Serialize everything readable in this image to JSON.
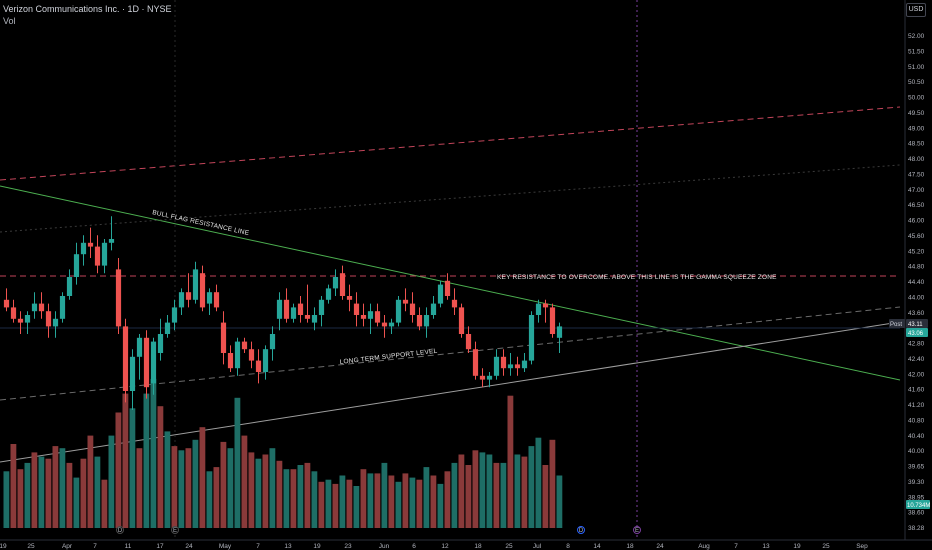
{
  "header": {
    "title": "Verizon Communications Inc. · 1D · NYSE",
    "volume_label": "Vol",
    "currency": "USD"
  },
  "colors": {
    "background": "#000000",
    "up": "#26a69a",
    "down": "#ef5350",
    "up_volume": "#1e6e66",
    "down_volume": "#8a3a3a",
    "resistance_line": "#4caf50",
    "support_line": "#9e9e9e",
    "dashed_red": "#c2455a",
    "dashed_gray": "#6b6b6b",
    "vertical_marker": "#7b3fa0"
  },
  "chart_data": {
    "type": "candlestick",
    "title": "Verizon Communications Inc. · 1D · NYSE",
    "y_axis": {
      "ticks": [
        "52.00",
        "51.50",
        "51.00",
        "50.50",
        "50.00",
        "49.50",
        "49.00",
        "48.50",
        "48.00",
        "47.50",
        "47.00",
        "46.50",
        "46.00",
        "45.60",
        "45.20",
        "44.80",
        "44.40",
        "44.00",
        "43.60",
        "43.20",
        "42.80",
        "42.40",
        "42.00",
        "41.60",
        "41.20",
        "40.80",
        "40.40",
        "40.00",
        "39.65",
        "39.30",
        "38.95",
        "38.60",
        "38.28"
      ],
      "log_scale": true
    },
    "x_axis": {
      "ticks": [
        "19",
        "25",
        "Apr",
        "7",
        "11",
        "17",
        "24",
        "May",
        "7",
        "13",
        "19",
        "23",
        "Jun",
        "6",
        "12",
        "18",
        "25",
        "Jul",
        "8",
        "14",
        "18",
        "24",
        "Aug",
        "7",
        "13",
        "19",
        "25",
        "Sep"
      ]
    },
    "price_labels": {
      "current": "43.11",
      "current_tag": "Post",
      "secondary": "43.06",
      "volume": "10.734M"
    },
    "candles": [
      {
        "o": 43.9,
        "h": 44.2,
        "l": 43.6,
        "c": 43.7
      },
      {
        "o": 43.7,
        "h": 43.9,
        "l": 43.3,
        "c": 43.4
      },
      {
        "o": 43.4,
        "h": 43.6,
        "l": 43.0,
        "c": 43.3
      },
      {
        "o": 43.3,
        "h": 43.6,
        "l": 43.0,
        "c": 43.5
      },
      {
        "o": 43.6,
        "h": 44.1,
        "l": 43.4,
        "c": 43.8
      },
      {
        "o": 43.8,
        "h": 44.1,
        "l": 43.4,
        "c": 43.6
      },
      {
        "o": 43.6,
        "h": 43.8,
        "l": 42.9,
        "c": 43.2
      },
      {
        "o": 43.2,
        "h": 43.6,
        "l": 42.9,
        "c": 43.4
      },
      {
        "o": 43.4,
        "h": 44.1,
        "l": 43.3,
        "c": 44.0
      },
      {
        "o": 44.0,
        "h": 44.7,
        "l": 43.9,
        "c": 44.5
      },
      {
        "o": 44.5,
        "h": 45.4,
        "l": 44.3,
        "c": 45.1
      },
      {
        "o": 45.1,
        "h": 45.6,
        "l": 44.8,
        "c": 45.4
      },
      {
        "o": 45.4,
        "h": 45.8,
        "l": 45.0,
        "c": 45.3
      },
      {
        "o": 45.3,
        "h": 45.6,
        "l": 44.6,
        "c": 44.8
      },
      {
        "o": 44.8,
        "h": 45.5,
        "l": 44.6,
        "c": 45.4
      },
      {
        "o": 45.4,
        "h": 46.1,
        "l": 45.2,
        "c": 45.5
      },
      {
        "o": 44.7,
        "h": 45.0,
        "l": 43.0,
        "c": 43.2
      },
      {
        "o": 43.2,
        "h": 43.4,
        "l": 41.2,
        "c": 41.5
      },
      {
        "o": 41.5,
        "h": 42.6,
        "l": 41.0,
        "c": 42.4
      },
      {
        "o": 42.4,
        "h": 43.0,
        "l": 41.8,
        "c": 42.9
      },
      {
        "o": 42.9,
        "h": 43.1,
        "l": 41.3,
        "c": 41.6
      },
      {
        "o": 41.7,
        "h": 42.9,
        "l": 41.4,
        "c": 42.8
      },
      {
        "o": 42.5,
        "h": 43.4,
        "l": 42.3,
        "c": 43.0
      },
      {
        "o": 43.0,
        "h": 43.5,
        "l": 42.9,
        "c": 43.3
      },
      {
        "o": 43.3,
        "h": 43.9,
        "l": 43.1,
        "c": 43.7
      },
      {
        "o": 43.7,
        "h": 44.2,
        "l": 43.5,
        "c": 44.1
      },
      {
        "o": 44.1,
        "h": 44.6,
        "l": 43.7,
        "c": 43.9
      },
      {
        "o": 43.9,
        "h": 44.9,
        "l": 43.8,
        "c": 44.7
      },
      {
        "o": 44.6,
        "h": 44.8,
        "l": 43.6,
        "c": 43.7
      },
      {
        "o": 43.8,
        "h": 44.2,
        "l": 43.5,
        "c": 44.1
      },
      {
        "o": 44.1,
        "h": 44.3,
        "l": 43.6,
        "c": 43.7
      },
      {
        "o": 43.3,
        "h": 43.6,
        "l": 42.2,
        "c": 42.5
      },
      {
        "o": 42.5,
        "h": 42.7,
        "l": 42.0,
        "c": 42.1
      },
      {
        "o": 42.1,
        "h": 42.9,
        "l": 41.9,
        "c": 42.8
      },
      {
        "o": 42.8,
        "h": 42.9,
        "l": 42.5,
        "c": 42.6
      },
      {
        "o": 42.6,
        "h": 42.8,
        "l": 42.1,
        "c": 42.3
      },
      {
        "o": 42.3,
        "h": 42.6,
        "l": 41.7,
        "c": 42.0
      },
      {
        "o": 42.0,
        "h": 42.7,
        "l": 41.8,
        "c": 42.6
      },
      {
        "o": 42.6,
        "h": 43.2,
        "l": 42.3,
        "c": 43.0
      },
      {
        "o": 43.4,
        "h": 44.1,
        "l": 43.1,
        "c": 43.9
      },
      {
        "o": 43.9,
        "h": 44.2,
        "l": 43.3,
        "c": 43.4
      },
      {
        "o": 43.4,
        "h": 43.8,
        "l": 43.3,
        "c": 43.7
      },
      {
        "o": 43.8,
        "h": 44.0,
        "l": 43.3,
        "c": 43.5
      },
      {
        "o": 43.5,
        "h": 44.3,
        "l": 43.3,
        "c": 43.4
      },
      {
        "o": 43.3,
        "h": 43.7,
        "l": 43.1,
        "c": 43.5
      },
      {
        "o": 43.5,
        "h": 44.0,
        "l": 43.2,
        "c": 43.9
      },
      {
        "o": 43.9,
        "h": 44.3,
        "l": 43.8,
        "c": 44.2
      },
      {
        "o": 44.2,
        "h": 44.7,
        "l": 44.0,
        "c": 44.5
      },
      {
        "o": 44.6,
        "h": 44.8,
        "l": 43.9,
        "c": 44.0
      },
      {
        "o": 44.0,
        "h": 44.3,
        "l": 43.6,
        "c": 43.9
      },
      {
        "o": 43.8,
        "h": 44.1,
        "l": 43.2,
        "c": 43.5
      },
      {
        "o": 43.5,
        "h": 43.8,
        "l": 43.2,
        "c": 43.4
      },
      {
        "o": 43.4,
        "h": 43.8,
        "l": 43.0,
        "c": 43.6
      },
      {
        "o": 43.6,
        "h": 43.8,
        "l": 43.2,
        "c": 43.3
      },
      {
        "o": 43.3,
        "h": 43.5,
        "l": 42.9,
        "c": 43.2
      },
      {
        "o": 43.2,
        "h": 43.4,
        "l": 43.0,
        "c": 43.3
      },
      {
        "o": 43.3,
        "h": 44.0,
        "l": 43.2,
        "c": 43.9
      },
      {
        "o": 43.9,
        "h": 44.2,
        "l": 43.6,
        "c": 43.8
      },
      {
        "o": 43.8,
        "h": 44.1,
        "l": 43.3,
        "c": 43.5
      },
      {
        "o": 43.5,
        "h": 43.7,
        "l": 43.1,
        "c": 43.2
      },
      {
        "o": 43.2,
        "h": 43.7,
        "l": 42.9,
        "c": 43.5
      },
      {
        "o": 43.5,
        "h": 44.0,
        "l": 43.4,
        "c": 43.8
      },
      {
        "o": 43.8,
        "h": 44.4,
        "l": 43.7,
        "c": 44.3
      },
      {
        "o": 44.4,
        "h": 44.6,
        "l": 43.9,
        "c": 44.0
      },
      {
        "o": 43.9,
        "h": 44.2,
        "l": 43.5,
        "c": 43.7
      },
      {
        "o": 43.7,
        "h": 43.8,
        "l": 42.9,
        "c": 43.0
      },
      {
        "o": 43.0,
        "h": 43.2,
        "l": 42.5,
        "c": 42.6
      },
      {
        "o": 42.6,
        "h": 42.8,
        "l": 41.8,
        "c": 41.9
      },
      {
        "o": 41.9,
        "h": 42.1,
        "l": 41.6,
        "c": 41.8
      },
      {
        "o": 41.8,
        "h": 42.0,
        "l": 41.6,
        "c": 41.9
      },
      {
        "o": 41.9,
        "h": 42.6,
        "l": 41.8,
        "c": 42.4
      },
      {
        "o": 42.4,
        "h": 42.6,
        "l": 41.9,
        "c": 42.1
      },
      {
        "o": 42.1,
        "h": 42.5,
        "l": 41.9,
        "c": 42.2
      },
      {
        "o": 42.2,
        "h": 42.4,
        "l": 41.9,
        "c": 42.1
      },
      {
        "o": 42.1,
        "h": 42.5,
        "l": 42.0,
        "c": 42.3
      },
      {
        "o": 42.3,
        "h": 43.6,
        "l": 42.2,
        "c": 43.5
      },
      {
        "o": 43.5,
        "h": 43.9,
        "l": 43.3,
        "c": 43.8
      },
      {
        "o": 43.8,
        "h": 43.9,
        "l": 43.3,
        "c": 43.7
      },
      {
        "o": 43.7,
        "h": 43.8,
        "l": 42.9,
        "c": 43.0
      },
      {
        "o": 42.9,
        "h": 43.3,
        "l": 42.5,
        "c": 43.2
      }
    ],
    "volumes": [
      {
        "v": 0.27,
        "up": true
      },
      {
        "v": 0.4,
        "up": false
      },
      {
        "v": 0.28,
        "up": false
      },
      {
        "v": 0.31,
        "up": true
      },
      {
        "v": 0.36,
        "up": false
      },
      {
        "v": 0.34,
        "up": true
      },
      {
        "v": 0.33,
        "up": false
      },
      {
        "v": 0.39,
        "up": false
      },
      {
        "v": 0.38,
        "up": true
      },
      {
        "v": 0.31,
        "up": false
      },
      {
        "v": 0.24,
        "up": true
      },
      {
        "v": 0.33,
        "up": false
      },
      {
        "v": 0.44,
        "up": false
      },
      {
        "v": 0.34,
        "up": true
      },
      {
        "v": 0.23,
        "up": false
      },
      {
        "v": 0.44,
        "up": true
      },
      {
        "v": 0.55,
        "up": false
      },
      {
        "v": 0.64,
        "up": false
      },
      {
        "v": 0.57,
        "up": true
      },
      {
        "v": 0.38,
        "up": false
      },
      {
        "v": 0.64,
        "up": true
      },
      {
        "v": 0.71,
        "up": true
      },
      {
        "v": 0.58,
        "up": false
      },
      {
        "v": 0.46,
        "up": true
      },
      {
        "v": 0.39,
        "up": false
      },
      {
        "v": 0.37,
        "up": true
      },
      {
        "v": 0.38,
        "up": false
      },
      {
        "v": 0.42,
        "up": true
      },
      {
        "v": 0.48,
        "up": false
      },
      {
        "v": 0.27,
        "up": true
      },
      {
        "v": 0.29,
        "up": false
      },
      {
        "v": 0.41,
        "up": false
      },
      {
        "v": 0.38,
        "up": true
      },
      {
        "v": 0.62,
        "up": true
      },
      {
        "v": 0.44,
        "up": false
      },
      {
        "v": 0.36,
        "up": false
      },
      {
        "v": 0.33,
        "up": true
      },
      {
        "v": 0.35,
        "up": false
      },
      {
        "v": 0.38,
        "up": true
      },
      {
        "v": 0.32,
        "up": false
      },
      {
        "v": 0.28,
        "up": true
      },
      {
        "v": 0.28,
        "up": false
      },
      {
        "v": 0.3,
        "up": true
      },
      {
        "v": 0.31,
        "up": false
      },
      {
        "v": 0.27,
        "up": true
      },
      {
        "v": 0.22,
        "up": false
      },
      {
        "v": 0.23,
        "up": true
      },
      {
        "v": 0.21,
        "up": false
      },
      {
        "v": 0.25,
        "up": true
      },
      {
        "v": 0.23,
        "up": false
      },
      {
        "v": 0.2,
        "up": true
      },
      {
        "v": 0.28,
        "up": false
      },
      {
        "v": 0.26,
        "up": true
      },
      {
        "v": 0.26,
        "up": false
      },
      {
        "v": 0.31,
        "up": true
      },
      {
        "v": 0.25,
        "up": false
      },
      {
        "v": 0.22,
        "up": true
      },
      {
        "v": 0.26,
        "up": false
      },
      {
        "v": 0.24,
        "up": true
      },
      {
        "v": 0.23,
        "up": false
      },
      {
        "v": 0.29,
        "up": true
      },
      {
        "v": 0.25,
        "up": false
      },
      {
        "v": 0.21,
        "up": true
      },
      {
        "v": 0.27,
        "up": false
      },
      {
        "v": 0.31,
        "up": true
      },
      {
        "v": 0.35,
        "up": false
      },
      {
        "v": 0.3,
        "up": false
      },
      {
        "v": 0.37,
        "up": false
      },
      {
        "v": 0.36,
        "up": true
      },
      {
        "v": 0.35,
        "up": true
      },
      {
        "v": 0.31,
        "up": false
      },
      {
        "v": 0.31,
        "up": true
      },
      {
        "v": 0.63,
        "up": false
      },
      {
        "v": 0.35,
        "up": true
      },
      {
        "v": 0.34,
        "up": false
      },
      {
        "v": 0.39,
        "up": true
      },
      {
        "v": 0.43,
        "up": true
      },
      {
        "v": 0.3,
        "up": false
      },
      {
        "v": 0.42,
        "up": false
      },
      {
        "v": 0.25,
        "up": true
      }
    ],
    "annotations": [
      {
        "text": "BULL FLAG RESISTANCE LINE"
      },
      {
        "text": "KEY RESISTANCE TO OVERCOME. ABOVE THIS LINE IS THE GAMMA SQUEEZE ZONE"
      },
      {
        "text": "LONG TERM SUPPORT LEVEL"
      }
    ],
    "event_markers": [
      "D",
      "E",
      "D",
      "E"
    ],
    "grid": false
  }
}
